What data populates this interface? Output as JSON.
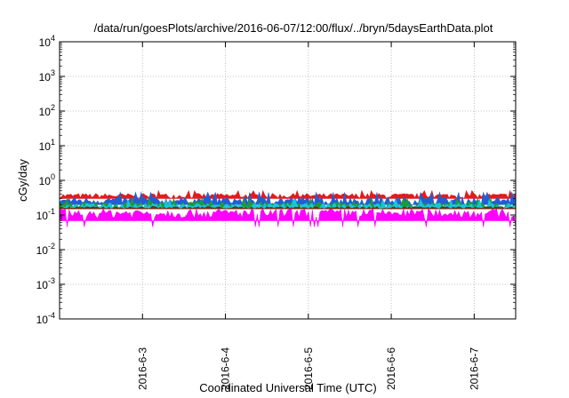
{
  "chart_data": {
    "type": "area",
    "title": "/data/run/goesPlots/archive/2016-06-07/12:00/flux/../bryn/5daysEarthData.plot",
    "xlabel": "Coordinated Universal Time (UTC)",
    "ylabel": "cGy/day",
    "y_scale": "log",
    "ylim": [
      0.0001,
      10000
    ],
    "y_ticks": [
      {
        "value": 0.0001,
        "base": "10",
        "exp": "-4"
      },
      {
        "value": 0.001,
        "base": "10",
        "exp": "-3"
      },
      {
        "value": 0.01,
        "base": "10",
        "exp": "-2"
      },
      {
        "value": 0.1,
        "base": "10",
        "exp": "-1"
      },
      {
        "value": 1,
        "base": "10",
        "exp": "0"
      },
      {
        "value": 10,
        "base": "10",
        "exp": "1"
      },
      {
        "value": 100,
        "base": "10",
        "exp": "2"
      },
      {
        "value": 1000,
        "base": "10",
        "exp": "3"
      },
      {
        "value": 10000,
        "base": "10",
        "exp": "4"
      }
    ],
    "xlim": [
      "2016-06-02T00:00",
      "2016-06-07T12:00"
    ],
    "x_ticks": [
      {
        "value": "2016-06-03T00:00",
        "label": "2016-6-3"
      },
      {
        "value": "2016-06-04T00:00",
        "label": "2016-6-4"
      },
      {
        "value": "2016-06-05T00:00",
        "label": "2016-6-5"
      },
      {
        "value": "2016-06-06T00:00",
        "label": "2016-6-6"
      },
      {
        "value": "2016-06-07T00:00",
        "label": "2016-6-7"
      }
    ],
    "grid": true,
    "series": [
      {
        "color": "#e41a1c",
        "low": 0.3,
        "high": 0.42,
        "spike": 0.5
      },
      {
        "color": "#1f5fd6",
        "low": 0.2,
        "high": 0.33,
        "spike": 0.45
      },
      {
        "color": "#1e9a3a",
        "low": 0.16,
        "high": 0.24,
        "spike": 0.3
      },
      {
        "color": "#17c6d8",
        "low": 0.15,
        "high": 0.22,
        "spike": 0.28
      },
      {
        "color": "#7b2a10",
        "low": 0.15,
        "high": 0.175,
        "spike": 0.18
      },
      {
        "color": "#ff00ff",
        "low": 0.08,
        "high": 0.15,
        "spike": 0.045
      }
    ]
  }
}
